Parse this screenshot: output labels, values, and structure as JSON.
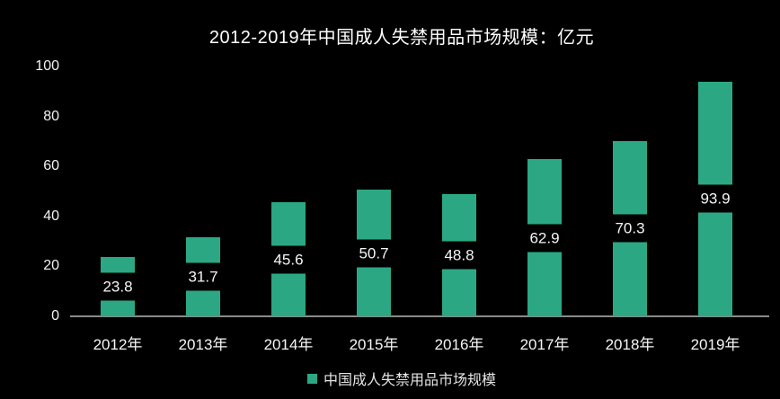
{
  "title": "2012-2019年中国成人失禁用品市场规模：亿元",
  "legend": {
    "label": "中国成人失禁用品市场规模"
  },
  "colors": {
    "background": "#000000",
    "bar": "#2BA883",
    "axis_line": "#8A8A8A",
    "title_text": "#FFFFFF",
    "tick_text": "#F2F2F2",
    "value_label_text": "#F5F5F5",
    "value_label_background": "#000000",
    "legend_text": "#E4E4E4"
  },
  "chart_data": {
    "type": "bar",
    "title": "2012-2019年中国成人失禁用品市场规模：亿元",
    "categories": [
      "2012年",
      "2013年",
      "2014年",
      "2015年",
      "2016年",
      "2017年",
      "2018年",
      "2019年"
    ],
    "values": [
      23.8,
      31.7,
      45.6,
      50.7,
      48.8,
      62.9,
      70.3,
      93.9
    ],
    "value_labels": [
      "23.8",
      "31.7",
      "45.6",
      "50.7",
      "48.8",
      "62.9",
      "70.3",
      "93.9"
    ],
    "series": [
      {
        "name": "中国成人失禁用品市场规模",
        "values": [
          23.8,
          31.7,
          45.6,
          50.7,
          48.8,
          62.9,
          70.3,
          93.9
        ]
      }
    ],
    "xlabel": "",
    "ylabel": "",
    "unit": "亿元",
    "ylim": [
      0,
      100
    ],
    "yticks": [
      0,
      20,
      40,
      60,
      80,
      100
    ],
    "grid": false,
    "legend_position": "bottom",
    "bar_color": "#2BA883"
  }
}
